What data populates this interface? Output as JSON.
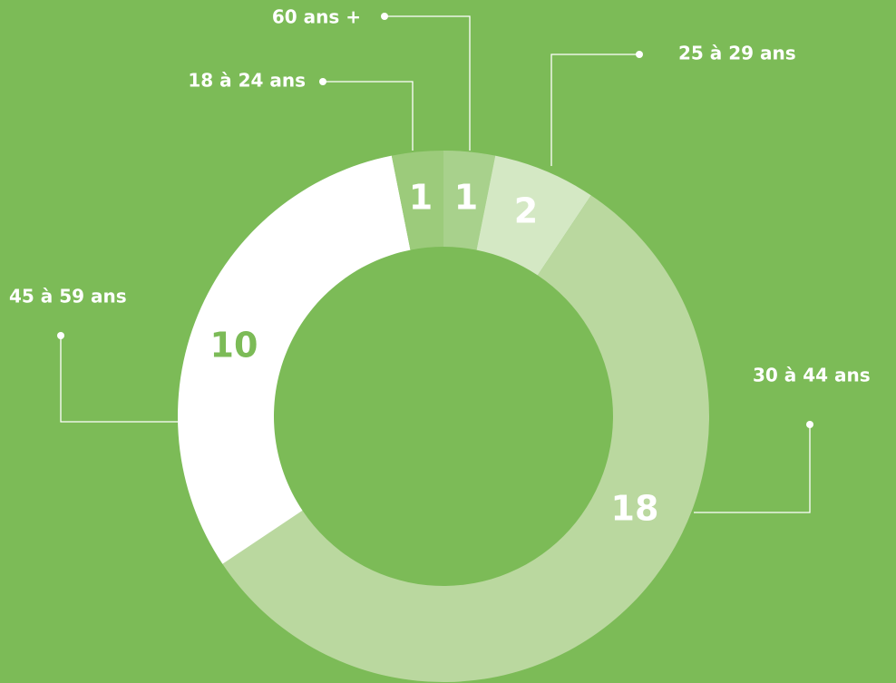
{
  "chart_data": {
    "type": "donut",
    "categories": [
      "60 ans +",
      "25 à 29 ans",
      "30 à 44 ans",
      "45 à 59 ans",
      "18 à 24 ans"
    ],
    "values": [
      1,
      2,
      18,
      10,
      1
    ],
    "colors": [
      "#a8d18c",
      "#d4e8c4",
      "#bad89f",
      "#ffffff",
      "#9ccb7b"
    ],
    "value_label_colors": [
      "#ffffff",
      "#ffffff",
      "#ffffff",
      "#7cbb57",
      "#ffffff"
    ],
    "background": "#7cbb57"
  }
}
